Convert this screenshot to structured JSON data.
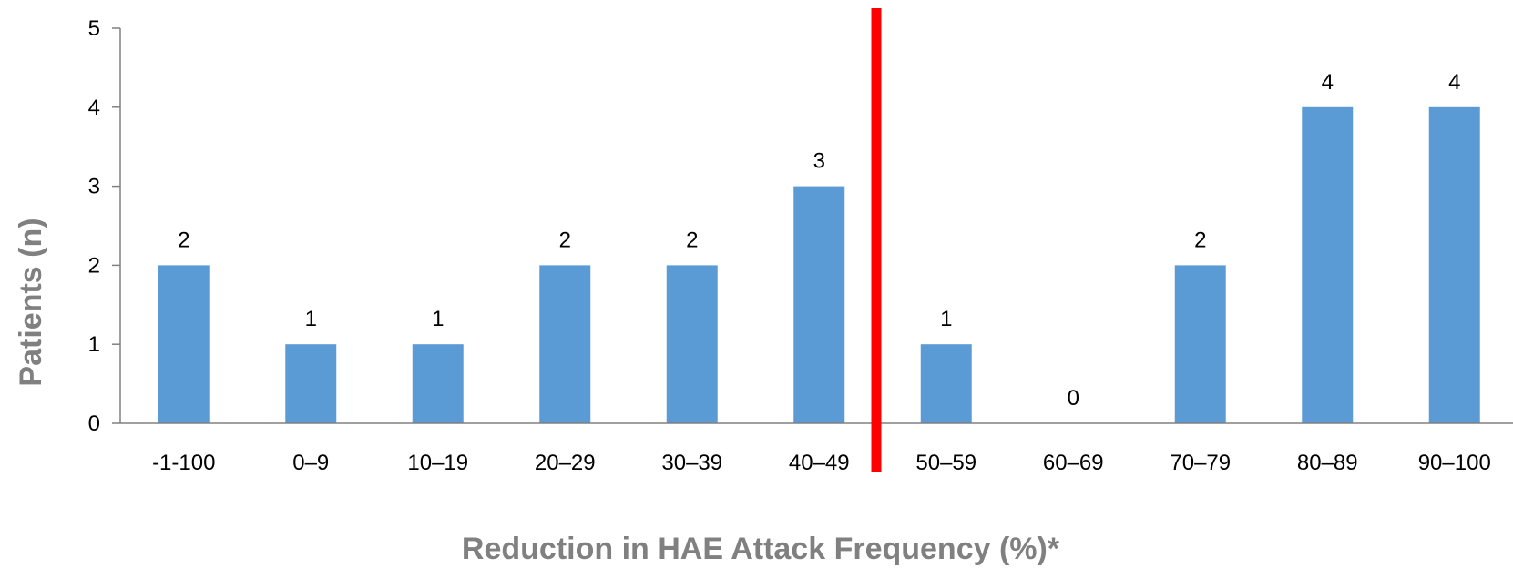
{
  "chart_data": {
    "type": "bar",
    "categories": [
      "-1-100",
      "0–9",
      "10–19",
      "20–29",
      "30–39",
      "40–49",
      "50–59",
      "60–69",
      "70–79",
      "80–89",
      "90–100"
    ],
    "values": [
      2,
      1,
      1,
      2,
      2,
      3,
      1,
      0,
      2,
      4,
      4
    ],
    "xlabel": "Reduction in HAE Attack Frequency (%)*",
    "ylabel": "Patients (n)",
    "ylim": [
      0,
      5
    ],
    "yticks": [
      0,
      1,
      2,
      3,
      4,
      5
    ],
    "grid": false,
    "legend": "none",
    "data_labels": true,
    "threshold_line": {
      "between_categories": [
        "40–49",
        "50–59"
      ],
      "color": "#ff0000"
    },
    "colors": {
      "bar": "#5b9bd5",
      "axis": "#808080",
      "threshold": "#ff0000"
    }
  }
}
